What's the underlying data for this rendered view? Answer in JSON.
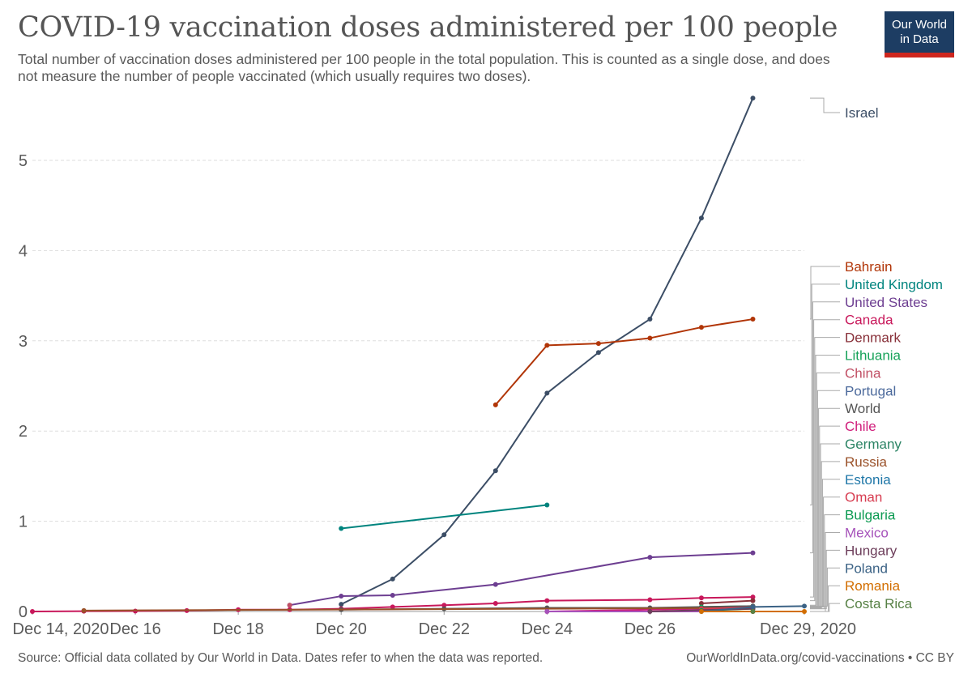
{
  "header": {
    "title": "COVID-19 vaccination doses administered per 100 people",
    "subtitle": "Total number of vaccination doses administered per 100 people in the total population. This is counted as a single dose, and does not measure the number of people vaccinated (which usually requires two doses).",
    "logo_line1": "Our World",
    "logo_line2": "in Data"
  },
  "footer": {
    "source": "Source: Official data collated by Our World in Data. Dates refer to when the data was reported.",
    "credit": "OurWorldInData.org/covid-vaccinations • CC BY"
  },
  "colors": {
    "grid": "#dddddd",
    "axis": "#999999",
    "text": "#5a5a5a",
    "logo_bg": "#1d3d63",
    "logo_accent": "#ce261e"
  },
  "chart_data": {
    "type": "line",
    "x_ticks": [
      "2020-12-14",
      "2020-12-16",
      "2020-12-18",
      "2020-12-20",
      "2020-12-22",
      "2020-12-24",
      "2020-12-26",
      "2020-12-29"
    ],
    "x_tick_labels": [
      "Dec 14, 2020",
      "Dec 16",
      "Dec 18",
      "Dec 20",
      "Dec 22",
      "Dec 24",
      "Dec 26",
      "Dec 29, 2020"
    ],
    "xlim": [
      "2020-12-14",
      "2020-12-29"
    ],
    "y_ticks": [
      0,
      1,
      2,
      3,
      4,
      5
    ],
    "ylim": [
      0,
      5.7
    ],
    "grid": "horizontal dashed",
    "legend": "right (line labels)",
    "series": [
      {
        "name": "Israel",
        "color": "#3c4e66",
        "points": [
          [
            "2020-12-20",
            0.08
          ],
          [
            "2020-12-21",
            0.36
          ],
          [
            "2020-12-22",
            0.85
          ],
          [
            "2020-12-23",
            1.56
          ],
          [
            "2020-12-24",
            2.42
          ],
          [
            "2020-12-25",
            2.87
          ],
          [
            "2020-12-26",
            3.24
          ],
          [
            "2020-12-27",
            4.36
          ],
          [
            "2020-12-28",
            5.69
          ]
        ]
      },
      {
        "name": "Bahrain",
        "color": "#b13507",
        "points": [
          [
            "2020-12-23",
            2.29
          ],
          [
            "2020-12-24",
            2.95
          ],
          [
            "2020-12-25",
            2.97
          ],
          [
            "2020-12-26",
            3.03
          ],
          [
            "2020-12-27",
            3.15
          ],
          [
            "2020-12-28",
            3.24
          ]
        ]
      },
      {
        "name": "United Kingdom",
        "color": "#00847e",
        "points": [
          [
            "2020-12-20",
            0.92
          ],
          [
            "2020-12-24",
            1.18
          ]
        ]
      },
      {
        "name": "United States",
        "color": "#6d3e91",
        "points": [
          [
            "2020-12-19",
            0.07
          ],
          [
            "2020-12-20",
            0.17
          ],
          [
            "2020-12-21",
            0.18
          ],
          [
            "2020-12-23",
            0.3
          ],
          [
            "2020-12-26",
            0.6
          ],
          [
            "2020-12-28",
            0.65
          ]
        ]
      },
      {
        "name": "Canada",
        "color": "#c8185b",
        "points": [
          [
            "2020-12-14",
            0.0
          ],
          [
            "2020-12-15",
            0.003
          ],
          [
            "2020-12-16",
            0.005
          ],
          [
            "2020-12-17",
            0.01
          ],
          [
            "2020-12-18",
            0.02
          ],
          [
            "2020-12-19",
            0.02
          ],
          [
            "2020-12-20",
            0.03
          ],
          [
            "2020-12-21",
            0.05
          ],
          [
            "2020-12-22",
            0.07
          ],
          [
            "2020-12-23",
            0.09
          ],
          [
            "2020-12-24",
            0.12
          ],
          [
            "2020-12-26",
            0.13
          ],
          [
            "2020-12-27",
            0.15
          ],
          [
            "2020-12-28",
            0.16
          ]
        ]
      },
      {
        "name": "Denmark",
        "color": "#883039",
        "points": [
          [
            "2020-12-27",
            0.09
          ],
          [
            "2020-12-28",
            0.12
          ]
        ]
      },
      {
        "name": "Lithuania",
        "color": "#18a35a",
        "points": [
          [
            "2020-12-27",
            0.05
          ],
          [
            "2020-12-28",
            0.06
          ]
        ]
      },
      {
        "name": "China",
        "color": "#c15065",
        "points": [
          [
            "2020-12-19",
            0.07
          ]
        ]
      },
      {
        "name": "Portugal",
        "color": "#4c6a9c",
        "points": [
          [
            "2020-12-27",
            0.02
          ],
          [
            "2020-12-28",
            0.04
          ]
        ]
      },
      {
        "name": "World",
        "color": "#555555",
        "points": [
          [
            "2020-12-20",
            0.02
          ],
          [
            "2020-12-22",
            0.03
          ],
          [
            "2020-12-24",
            0.04
          ],
          [
            "2020-12-26",
            0.04
          ],
          [
            "2020-12-28",
            0.06
          ]
        ]
      },
      {
        "name": "Chile",
        "color": "#d01d7b",
        "points": [
          [
            "2020-12-24",
            0.0
          ],
          [
            "2020-12-26",
            0.02
          ],
          [
            "2020-12-28",
            0.04
          ]
        ]
      },
      {
        "name": "Germany",
        "color": "#2c8465",
        "points": [
          [
            "2020-12-27",
            0.02
          ],
          [
            "2020-12-28",
            0.05
          ]
        ]
      },
      {
        "name": "Russia",
        "color": "#9a5129",
        "points": [
          [
            "2020-12-15",
            0.01
          ],
          [
            "2020-12-28",
            0.04
          ]
        ]
      },
      {
        "name": "Estonia",
        "color": "#1f77a8",
        "points": [
          [
            "2020-12-27",
            0.01
          ],
          [
            "2020-12-28",
            0.05
          ]
        ]
      },
      {
        "name": "Oman",
        "color": "#d73c50",
        "points": [
          [
            "2020-12-27",
            0.03
          ],
          [
            "2020-12-28",
            0.05
          ]
        ]
      },
      {
        "name": "Bulgaria",
        "color": "#0c9a52",
        "points": [
          [
            "2020-12-27",
            0.01
          ],
          [
            "2020-12-28",
            0.03
          ]
        ]
      },
      {
        "name": "Mexico",
        "color": "#a652ba",
        "points": [
          [
            "2020-12-24",
            0.0
          ],
          [
            "2020-12-28",
            0.0
          ]
        ]
      },
      {
        "name": "Hungary",
        "color": "#6d3e5b",
        "points": [
          [
            "2020-12-26",
            0.0
          ],
          [
            "2020-12-28",
            0.03
          ]
        ]
      },
      {
        "name": "Poland",
        "color": "#3b6285",
        "points": [
          [
            "2020-12-27",
            0.0
          ],
          [
            "2020-12-28",
            0.05
          ],
          [
            "2020-12-29",
            0.06
          ]
        ]
      },
      {
        "name": "Romania",
        "color": "#d26e00",
        "points": [
          [
            "2020-12-27",
            0.0
          ],
          [
            "2020-12-28",
            0.0
          ],
          [
            "2020-12-29",
            0.0
          ]
        ]
      },
      {
        "name": "Costa Rica",
        "color": "#578145",
        "points": [
          [
            "2020-12-28",
            0.0
          ]
        ]
      }
    ]
  }
}
